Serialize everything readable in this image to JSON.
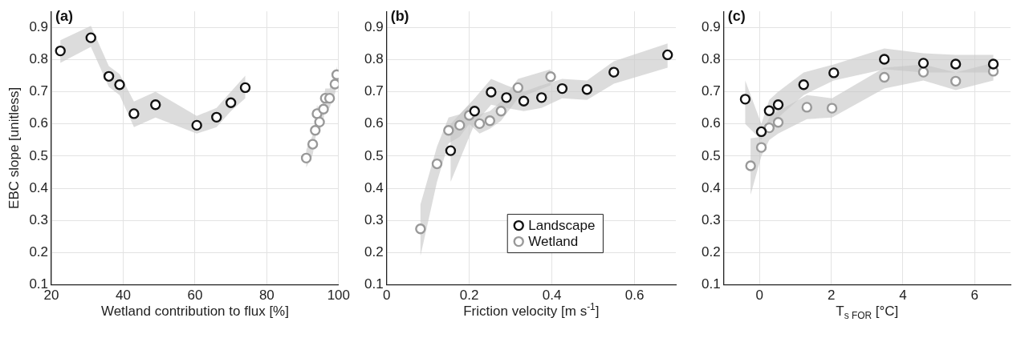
{
  "chart_data": [
    {
      "type": "scatter",
      "title": "(a)",
      "xlabel": "Wetland contribution to flux [%]",
      "ylabel": "EBC slope [unitless]",
      "xlim": [
        20,
        100
      ],
      "xticks": [
        20,
        40,
        60,
        80,
        100
      ],
      "ylim": [
        0.1,
        0.95
      ],
      "yticks": [
        0.1,
        0.2,
        0.3,
        0.4,
        0.5,
        0.6,
        0.7,
        0.8,
        0.9
      ],
      "grid": true,
      "marker": "circle",
      "legend": false,
      "series": [
        {
          "color": "#111111",
          "x": [
            22.5,
            31,
            36,
            39,
            43,
            49,
            60.5,
            66,
            70,
            74
          ],
          "values": [
            0.827,
            0.868,
            0.748,
            0.722,
            0.632,
            0.66,
            0.596,
            0.621,
            0.666,
            0.713
          ],
          "lower": [
            0.79,
            0.84,
            0.715,
            0.69,
            0.59,
            0.62,
            0.57,
            0.59,
            0.64,
            0.68
          ],
          "upper": [
            0.86,
            0.905,
            0.78,
            0.755,
            0.67,
            0.7,
            0.625,
            0.65,
            0.7,
            0.75
          ]
        },
        {
          "color": "#999999",
          "x": [
            91,
            92.8,
            93.5,
            94,
            94.7,
            95.8,
            96.3,
            97.5,
            99,
            99.5
          ],
          "values": [
            0.494,
            0.537,
            0.58,
            0.632,
            0.606,
            0.646,
            0.68,
            0.68,
            0.724,
            0.753
          ],
          "lower": [
            0.465,
            0.505,
            0.55,
            0.6,
            0.575,
            0.615,
            0.65,
            0.65,
            0.695,
            0.72
          ],
          "upper": [
            0.52,
            0.565,
            0.61,
            0.66,
            0.635,
            0.675,
            0.71,
            0.71,
            0.75,
            0.78
          ]
        }
      ]
    },
    {
      "type": "scatter",
      "title": "(b)",
      "xlabel": "Friction velocity [m s$^{-1}$]",
      "xlim": [
        0,
        0.7
      ],
      "xticks": [
        0,
        0.2,
        0.4,
        0.6
      ],
      "ylim": [
        0.1,
        0.95
      ],
      "yticks": [
        0.1,
        0.2,
        0.3,
        0.4,
        0.5,
        0.6,
        0.7,
        0.8,
        0.9
      ],
      "grid": true,
      "marker": "circle",
      "legend": "bottom",
      "series": [
        {
          "name": "Landscape",
          "color": "#111111",
          "x": [
            0.155,
            0.213,
            0.253,
            0.29,
            0.332,
            0.375,
            0.425,
            0.485,
            0.55,
            0.68
          ],
          "values": [
            0.517,
            0.64,
            0.699,
            0.682,
            0.671,
            0.682,
            0.71,
            0.707,
            0.761,
            0.815
          ],
          "lower": [
            0.42,
            0.6,
            0.66,
            0.65,
            0.64,
            0.65,
            0.68,
            0.675,
            0.725,
            0.775
          ],
          "upper": [
            0.6,
            0.68,
            0.74,
            0.72,
            0.7,
            0.72,
            0.74,
            0.735,
            0.795,
            0.85
          ]
        },
        {
          "name": "Wetland",
          "color": "#999999",
          "x": [
            0.082,
            0.122,
            0.15,
            0.177,
            0.2,
            0.225,
            0.25,
            0.277,
            0.318,
            0.397
          ],
          "values": [
            0.274,
            0.476,
            0.58,
            0.596,
            0.627,
            0.601,
            0.61,
            0.64,
            0.713,
            0.747
          ],
          "lower": [
            0.19,
            0.42,
            0.54,
            0.56,
            0.6,
            0.57,
            0.585,
            0.61,
            0.68,
            0.72
          ],
          "upper": [
            0.35,
            0.53,
            0.62,
            0.63,
            0.66,
            0.63,
            0.64,
            0.67,
            0.74,
            0.77
          ]
        }
      ]
    },
    {
      "type": "scatter",
      "title": "(c)",
      "xlabel": "T$_{s FOR}$ [°C]",
      "xlim": [
        -1,
        7
      ],
      "xticks": [
        0,
        2,
        4,
        6
      ],
      "ylim": [
        0.1,
        0.95
      ],
      "yticks": [
        0.1,
        0.2,
        0.3,
        0.4,
        0.5,
        0.6,
        0.7,
        0.8,
        0.9
      ],
      "grid": true,
      "marker": "circle",
      "legend": false,
      "series": [
        {
          "color": "#111111",
          "x": [
            -0.4,
            0.05,
            0.27,
            0.52,
            1.23,
            2.07,
            3.48,
            4.57,
            5.47,
            6.52
          ],
          "values": [
            0.677,
            0.576,
            0.641,
            0.66,
            0.722,
            0.759,
            0.801,
            0.789,
            0.786,
            0.786
          ],
          "lower": [
            0.6,
            0.55,
            0.6,
            0.62,
            0.69,
            0.735,
            0.77,
            0.76,
            0.76,
            0.76
          ],
          "upper": [
            0.735,
            0.6,
            0.675,
            0.7,
            0.76,
            0.785,
            0.835,
            0.82,
            0.815,
            0.815
          ]
        },
        {
          "color": "#999999",
          "x": [
            -0.25,
            0.05,
            0.27,
            0.52,
            1.32,
            2.02,
            3.48,
            4.57,
            5.47,
            6.52
          ],
          "values": [
            0.47,
            0.527,
            0.588,
            0.605,
            0.652,
            0.649,
            0.745,
            0.761,
            0.733,
            0.764
          ],
          "lower": [
            0.38,
            0.5,
            0.55,
            0.57,
            0.615,
            0.62,
            0.71,
            0.735,
            0.705,
            0.735
          ],
          "upper": [
            0.555,
            0.56,
            0.62,
            0.64,
            0.69,
            0.68,
            0.775,
            0.785,
            0.76,
            0.79
          ]
        }
      ]
    }
  ]
}
